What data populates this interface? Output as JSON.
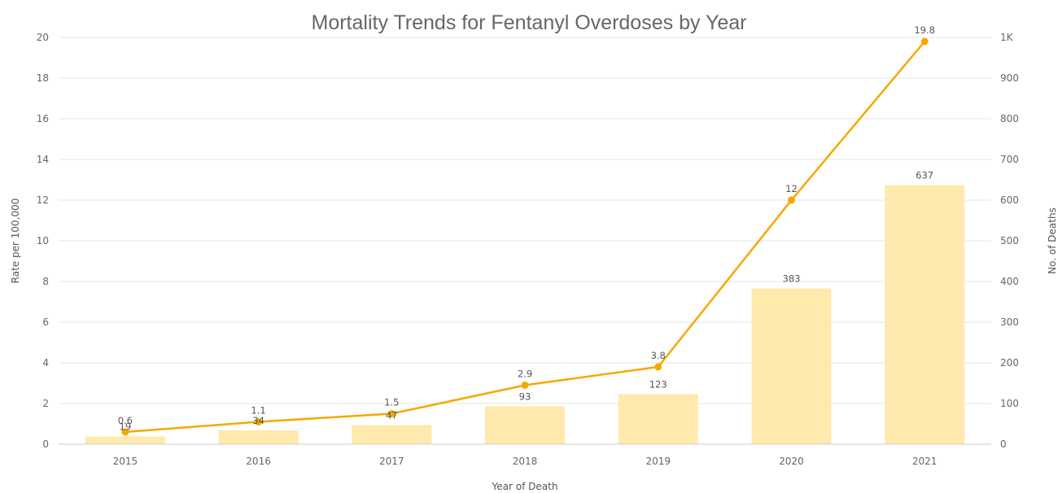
{
  "chart_data": {
    "type": "bar",
    "title": "Mortality Trends for Fentanyl Overdoses by Year",
    "xlabel": "Year of Death",
    "ylabel_left": "Rate per 100,000",
    "ylabel_right": "No. of Deaths",
    "categories": [
      "2015",
      "2016",
      "2017",
      "2018",
      "2019",
      "2020",
      "2021"
    ],
    "ylim_left": [
      0,
      20
    ],
    "ylim_right": [
      0,
      1000
    ],
    "yticks_left": [
      "0",
      "2",
      "4",
      "6",
      "8",
      "10",
      "12",
      "14",
      "16",
      "18",
      "20"
    ],
    "yticks_right": [
      "0",
      "100",
      "200",
      "300",
      "400",
      "500",
      "600",
      "700",
      "800",
      "900",
      "1K"
    ],
    "series": [
      {
        "type": "bar",
        "axis": "right",
        "values": [
          19,
          34,
          47,
          93,
          123,
          383,
          637
        ],
        "labels": [
          "19",
          "34",
          "47",
          "93",
          "123",
          "383",
          "637"
        ],
        "color": "#ffe9ad"
      },
      {
        "type": "line",
        "axis": "left",
        "values": [
          0.6,
          1.1,
          1.5,
          2.9,
          3.8,
          12,
          19.8
        ],
        "labels": [
          "0.6",
          "1.1",
          "1.5",
          "2.9",
          "3.8",
          "12",
          "19.8"
        ],
        "color": "#f5a800"
      }
    ],
    "grid": true,
    "legend": "none"
  }
}
